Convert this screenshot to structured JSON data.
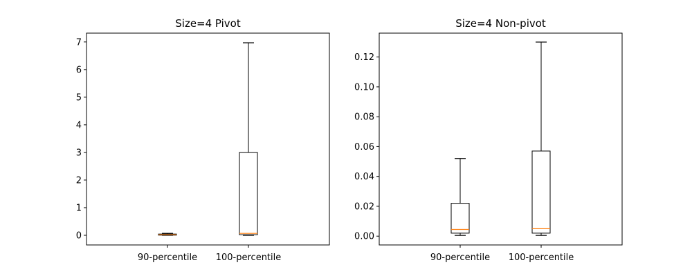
{
  "chart_data": [
    {
      "type": "boxplot",
      "title": "Size=4   Pivot",
      "xlabel": "",
      "ylabel": "",
      "categories": [
        "90-percentile",
        "100-percentile"
      ],
      "boxes": [
        {
          "whislo": 0.0,
          "q1": 0.005,
          "med": 0.02,
          "q3": 0.045,
          "whishi": 0.07
        },
        {
          "whislo": 0.0,
          "q1": 0.02,
          "med": 0.07,
          "q3": 3.0,
          "whishi": 6.97
        }
      ],
      "ylim": [
        -0.35,
        7.32
      ],
      "yticks": [
        0,
        1,
        2,
        3,
        4,
        5,
        6,
        7
      ],
      "ytick_labels": [
        "0",
        "1",
        "2",
        "3",
        "4",
        "5",
        "6",
        "7"
      ],
      "grid": false
    },
    {
      "type": "boxplot",
      "title": "Size=4   Non-pivot",
      "xlabel": "",
      "ylabel": "",
      "categories": [
        "90-percentile",
        "100-percentile"
      ],
      "boxes": [
        {
          "whislo": 0.0005,
          "q1": 0.002,
          "med": 0.0045,
          "q3": 0.022,
          "whishi": 0.052
        },
        {
          "whislo": 0.0005,
          "q1": 0.002,
          "med": 0.005,
          "q3": 0.057,
          "whishi": 0.13
        }
      ],
      "ylim": [
        -0.0059,
        0.136
      ],
      "yticks": [
        0.0,
        0.02,
        0.04,
        0.06,
        0.08,
        0.1,
        0.12
      ],
      "ytick_labels": [
        "0.00",
        "0.02",
        "0.04",
        "0.06",
        "0.08",
        "0.10",
        "0.12"
      ],
      "grid": false
    }
  ],
  "colors": {
    "median": "#ff7f0e",
    "box": "#000000",
    "axes": "#000000",
    "background": "#ffffff"
  }
}
